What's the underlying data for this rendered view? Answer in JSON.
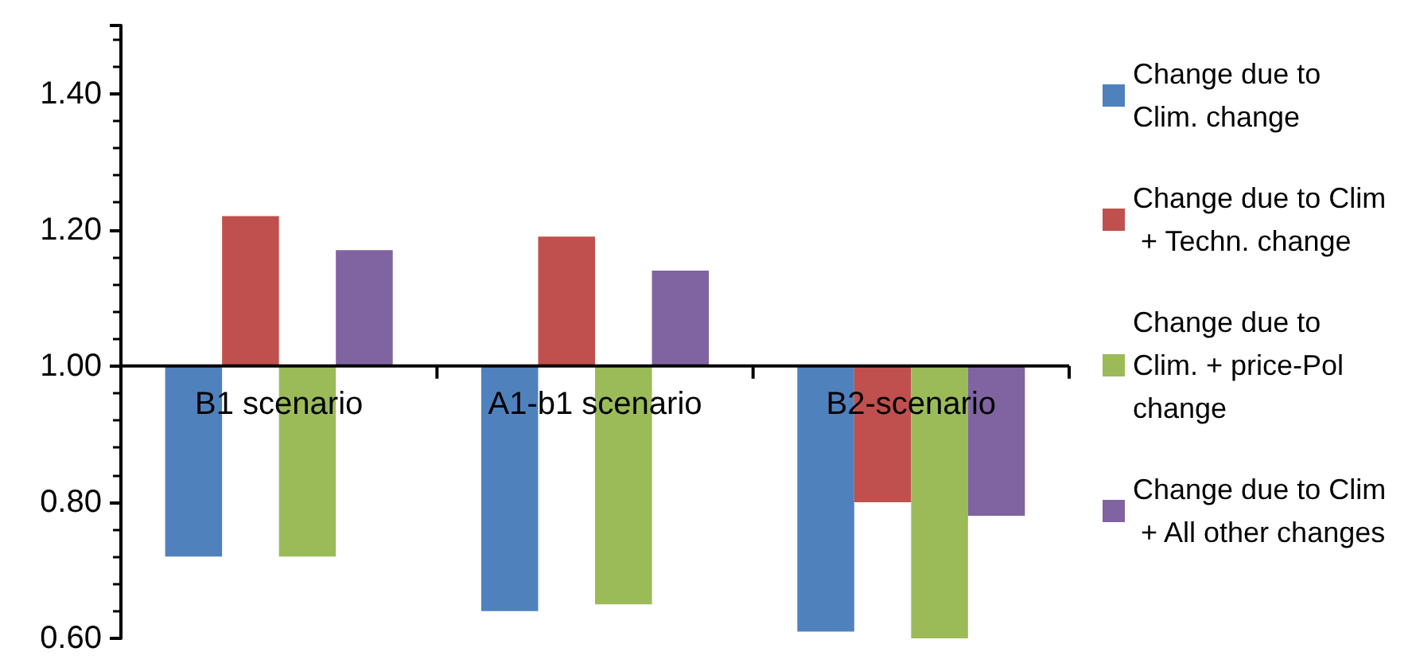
{
  "chart_data": {
    "type": "bar",
    "categories": [
      "B1 scenario",
      "A1-b1 scenario",
      "B2-scenario"
    ],
    "series": [
      {
        "name": "Change due to Clim. change",
        "color": "#4f81bd",
        "base": [
          1,
          1,
          1
        ],
        "values": [
          -0.28,
          -0.36,
          -0.39
        ]
      },
      {
        "name": "Change due to Clim + Techn. change",
        "color": "#c0504d",
        "base": [
          1,
          1,
          1
        ],
        "values": [
          0.22,
          0.19,
          -0.2
        ]
      },
      {
        "name": "Change due to Clim. + price-Pol change",
        "color": "#9bbb59",
        "base": [
          1,
          1,
          1
        ],
        "values": [
          -0.28,
          -0.35,
          -0.4
        ]
      },
      {
        "name": "Change due to Clim + All other changes",
        "color": "#8064a2",
        "base": [
          1,
          1,
          1
        ],
        "values": [
          0.17,
          0.14,
          -0.22
        ]
      }
    ],
    "ylim": [
      0.6,
      1.5
    ],
    "yticks": [
      {
        "value": 0.6,
        "label": "0.60"
      },
      {
        "value": 0.8,
        "label": "0.80"
      },
      {
        "value": 1.0,
        "label": "1.00"
      },
      {
        "value": 1.2,
        "label": "1.20"
      },
      {
        "value": 1.4,
        "label": "1.40"
      }
    ],
    "grid": false,
    "legend": "right"
  }
}
